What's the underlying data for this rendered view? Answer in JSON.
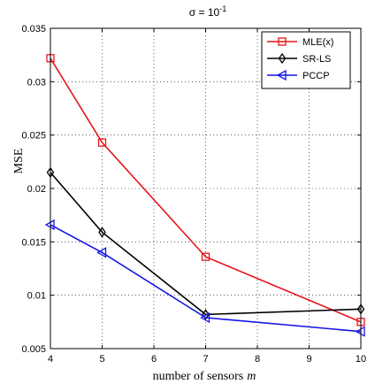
{
  "chart_data": {
    "type": "line",
    "title": "σ = 10",
    "title_exponent": "-1",
    "xlabel": "number of sensors",
    "xlabel_var": "m",
    "ylabel": "MSE",
    "xlim": [
      4,
      10
    ],
    "ylim": [
      0.005,
      0.035
    ],
    "xticks": [
      4,
      5,
      6,
      7,
      8,
      9,
      10
    ],
    "yticks": [
      0.005,
      0.01,
      0.015,
      0.02,
      0.025,
      0.03,
      0.035
    ],
    "ytick_labels": [
      "0.005",
      "0.01",
      "0.015",
      "0.02",
      "0.025",
      "0.03",
      "0.035"
    ],
    "grid": true,
    "legend_position": "top-right",
    "series": [
      {
        "name": "MLE(x)",
        "color": "#e8141c",
        "marker": "square",
        "x": [
          4,
          5,
          7,
          10
        ],
        "values": [
          0.0322,
          0.0243,
          0.0136,
          0.0075
        ]
      },
      {
        "name": "SR-LS",
        "color": "#000000",
        "marker": "diamond",
        "x": [
          4,
          5,
          7,
          10
        ],
        "values": [
          0.0215,
          0.0159,
          0.0082,
          0.0087
        ]
      },
      {
        "name": "PCCP",
        "color": "#1414e8",
        "marker": "triangle-left",
        "x": [
          4,
          5,
          7,
          10
        ],
        "values": [
          0.0166,
          0.014,
          0.0079,
          0.0066
        ]
      }
    ]
  }
}
